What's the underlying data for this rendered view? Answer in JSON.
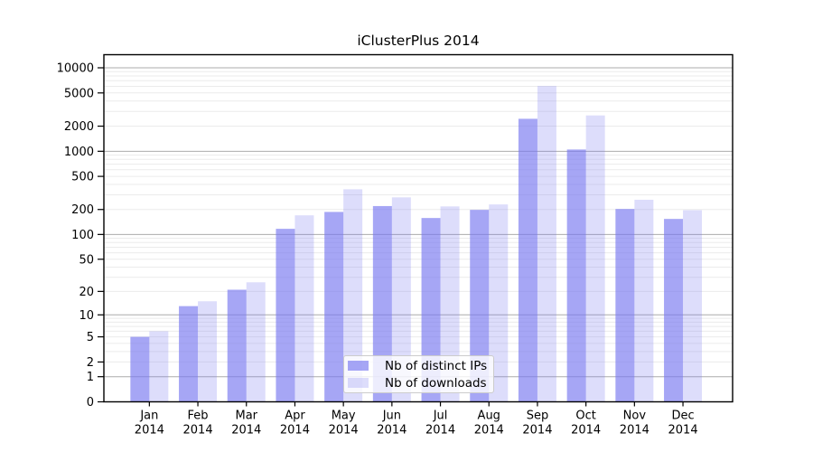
{
  "figure": {
    "title": "iClusterPlus 2014",
    "background_color": "#ffffff",
    "frame_color": "#000000"
  },
  "legend": {
    "items": [
      {
        "label": "Nb of distinct IPs",
        "swatch_color": "rgba(120,120,240,0.66)"
      },
      {
        "label": "Nb of downloads",
        "swatch_color": "rgba(120,120,240,0.25)"
      }
    ]
  },
  "chart_data": {
    "type": "bar",
    "title": "iClusterPlus 2014",
    "categories": [
      "Jan 2014",
      "Feb 2014",
      "Mar 2014",
      "Apr 2014",
      "May 2014",
      "Jun 2014",
      "Jul 2014",
      "Aug 2014",
      "Sep 2014",
      "Oct 2014",
      "Nov 2014",
      "Dec 2014"
    ],
    "series": [
      {
        "name": "Nb of distinct IPs",
        "color": "rgba(120,120,240,0.66)",
        "values": [
          5,
          13,
          21,
          117,
          187,
          220,
          158,
          198,
          2450,
          1050,
          203,
          154
        ]
      },
      {
        "name": "Nb of downloads",
        "color": "rgba(120,120,240,0.25)",
        "values": [
          6,
          15,
          26,
          170,
          350,
          280,
          218,
          230,
          6050,
          2690,
          262,
          196
        ]
      }
    ],
    "xlabel": "",
    "ylabel": "",
    "yscale": "log1p",
    "yticks": [
      0,
      1,
      2,
      5,
      10,
      20,
      50,
      100,
      200,
      500,
      1000,
      2000,
      5000,
      10000
    ],
    "ylim": [
      0,
      14400
    ],
    "grid": "horizontal major (powers of 10, gray) + minor log lines (light gray)",
    "grid_major_color": "#ababab",
    "grid_minor_color": "#ebebeb",
    "legend_position": "inside lower-center-left",
    "bar_layout": "grouped pairs, series side by side per month"
  }
}
